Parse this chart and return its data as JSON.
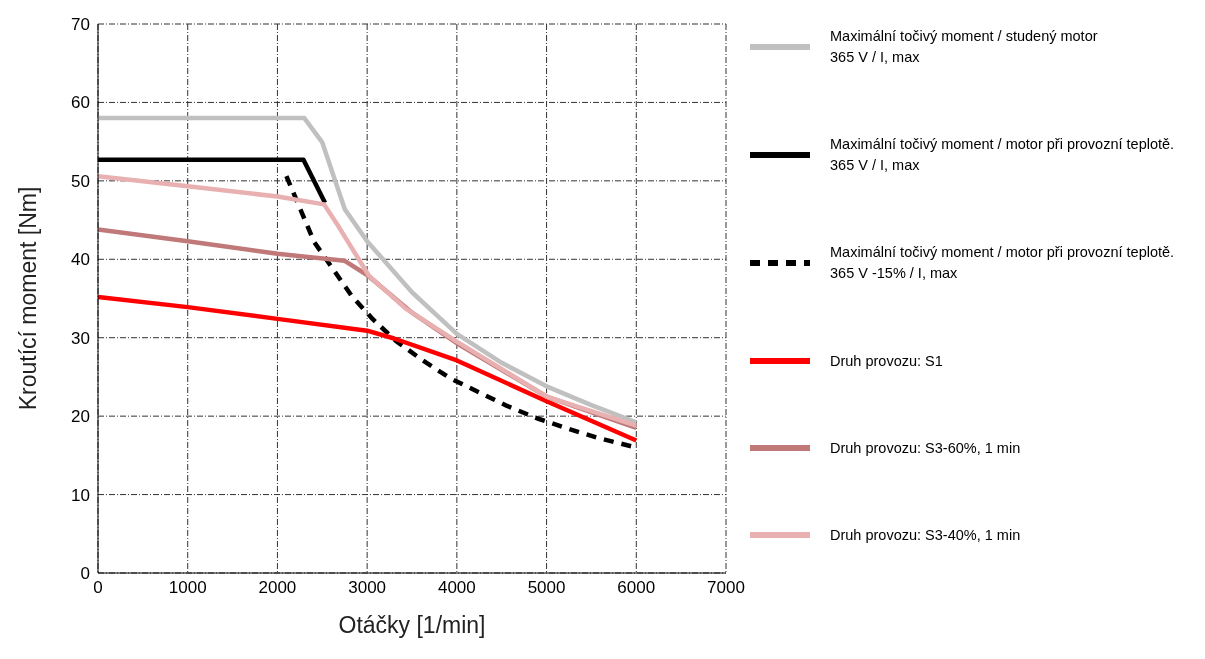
{
  "chart_data": {
    "type": "line",
    "xlabel": "Otáčky [1/min]",
    "ylabel": "Kroutící moment [Nm]",
    "xlim": [
      0,
      7000
    ],
    "ylim": [
      0,
      70
    ],
    "xticks": [
      0,
      1000,
      2000,
      3000,
      4000,
      5000,
      6000,
      7000
    ],
    "yticks": [
      0,
      10,
      20,
      30,
      40,
      50,
      60,
      70
    ],
    "grid": true,
    "legend": "right",
    "marker": "none",
    "line_style": "solid",
    "series": [
      {
        "name": "Maximální točivý moment / studený motor\n365 V / I, max",
        "color": "#c0c0c0",
        "x": [
          0,
          2300,
          2500,
          2750,
          3000,
          3500,
          4000,
          4500,
          5000,
          5500,
          6000
        ],
        "values": [
          58,
          58,
          54.9,
          46.4,
          42.3,
          35.8,
          30.5,
          26.8,
          23.8,
          21.4,
          19.2
        ]
      },
      {
        "name": "Maximální točivý moment / motor při provozní teplotě.\n365 V / I, max",
        "color": "#000000",
        "x": [
          0,
          2290,
          2530
        ],
        "values": [
          52.7,
          52.7,
          47.2
        ]
      },
      {
        "name": "Maximální točivý moment / motor při provozní teplotě.\n365 V -15% / I, max",
        "color": "#000000",
        "line_style": "dashed",
        "x": [
          2100,
          2410,
          2830,
          3060,
          3320,
          3620,
          3930,
          4560,
          4900,
          5240,
          5580,
          6000
        ],
        "values": [
          50.6,
          42.2,
          35.3,
          32.4,
          29.6,
          27.1,
          24.8,
          21.3,
          19.7,
          18.4,
          17.2,
          16
        ]
      },
      {
        "name": "Druh provozu: S1",
        "color": "#ff0000",
        "x": [
          0,
          1000,
          2000,
          3000,
          3300,
          4000,
          5000,
          6000
        ],
        "values": [
          35.2,
          33.9,
          32.4,
          30.9,
          29.9,
          27.1,
          21.9,
          16.9
        ]
      },
      {
        "name": "Druh provozu: S3-60%, 1 min",
        "color": "#c07878",
        "x": [
          0,
          1000,
          2000,
          2750,
          3000,
          3500,
          4000,
          5000,
          6000
        ],
        "values": [
          43.8,
          42.3,
          40.7,
          39.8,
          38,
          33.2,
          29.3,
          22.5,
          18.5
        ]
      },
      {
        "name": "Druh provozu: S3-40%, 1 min",
        "color": "#e8b0b0",
        "x": [
          0,
          1000,
          2000,
          2520,
          2680,
          3020,
          3430,
          4000,
          5000,
          6000
        ],
        "values": [
          50.6,
          49.3,
          48,
          47,
          44.2,
          37.9,
          33.7,
          29.5,
          22.5,
          18.8
        ]
      }
    ]
  }
}
